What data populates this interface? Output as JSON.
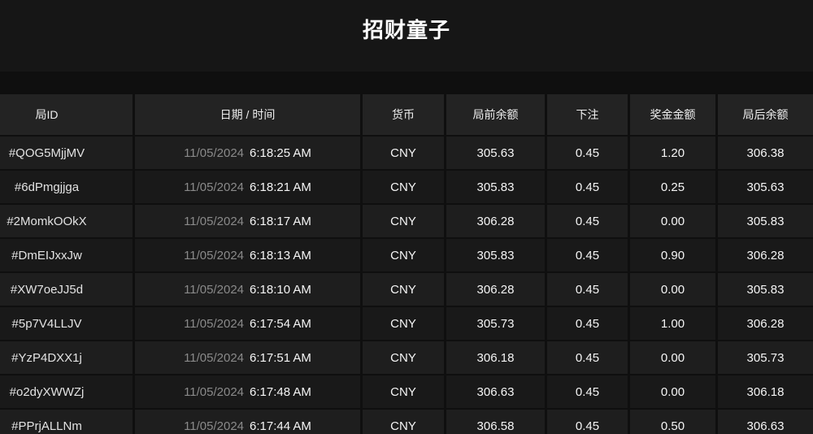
{
  "title": "招财童子",
  "table": {
    "columns": [
      "局ID",
      "日期 / 时间",
      "货币",
      "局前余额",
      "下注",
      "奖金金额",
      "局后余额"
    ],
    "rows": [
      {
        "id": "#QOG5MjjMV",
        "date": "11/05/2024",
        "time": "6:18:25 AM",
        "currency": "CNY",
        "balance_before": "305.63",
        "bet": "0.45",
        "prize": "1.20",
        "balance_after": "306.38"
      },
      {
        "id": "#6dPmgjjga",
        "date": "11/05/2024",
        "time": "6:18:21 AM",
        "currency": "CNY",
        "balance_before": "305.83",
        "bet": "0.45",
        "prize": "0.25",
        "balance_after": "305.63"
      },
      {
        "id": "#2MomkOOkX",
        "date": "11/05/2024",
        "time": "6:18:17 AM",
        "currency": "CNY",
        "balance_before": "306.28",
        "bet": "0.45",
        "prize": "0.00",
        "balance_after": "305.83"
      },
      {
        "id": "#DmEIJxxJw",
        "date": "11/05/2024",
        "time": "6:18:13 AM",
        "currency": "CNY",
        "balance_before": "305.83",
        "bet": "0.45",
        "prize": "0.90",
        "balance_after": "306.28"
      },
      {
        "id": "#XW7oeJJ5d",
        "date": "11/05/2024",
        "time": "6:18:10 AM",
        "currency": "CNY",
        "balance_before": "306.28",
        "bet": "0.45",
        "prize": "0.00",
        "balance_after": "305.83"
      },
      {
        "id": "#5p7V4LLJV",
        "date": "11/05/2024",
        "time": "6:17:54 AM",
        "currency": "CNY",
        "balance_before": "305.73",
        "bet": "0.45",
        "prize": "1.00",
        "balance_after": "306.28"
      },
      {
        "id": "#YzP4DXX1j",
        "date": "11/05/2024",
        "time": "6:17:51 AM",
        "currency": "CNY",
        "balance_before": "306.18",
        "bet": "0.45",
        "prize": "0.00",
        "balance_after": "305.73"
      },
      {
        "id": "#o2dyXWWZj",
        "date": "11/05/2024",
        "time": "6:17:48 AM",
        "currency": "CNY",
        "balance_before": "306.63",
        "bet": "0.45",
        "prize": "0.00",
        "balance_after": "306.18"
      },
      {
        "id": "#PPrjALLNm",
        "date": "11/05/2024",
        "time": "6:17:44 AM",
        "currency": "CNY",
        "balance_before": "306.58",
        "bet": "0.45",
        "prize": "0.50",
        "balance_after": "306.63"
      }
    ]
  },
  "colors": {
    "page_background": "#0f0f0f",
    "title_band_background": "#161616",
    "header_row_background": "#232323",
    "row_odd_background": "#1e1e1e",
    "row_even_background": "#191919",
    "date_muted_text": "#8a8a8a",
    "primary_text": "#f5f5f5"
  }
}
